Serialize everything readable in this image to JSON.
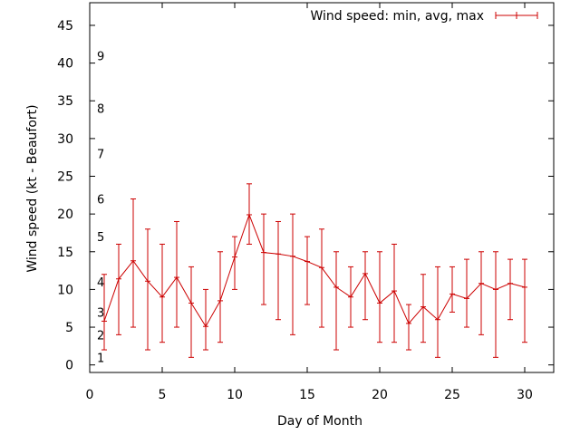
{
  "chart_data": {
    "type": "line",
    "xlabel": "Day of Month",
    "ylabel": "Wind speed (kt - Beaufort)",
    "xlim": [
      0,
      32
    ],
    "ylim": [
      -1,
      48
    ],
    "x_ticks": [
      0,
      5,
      10,
      15,
      20,
      25,
      30
    ],
    "y_ticks": [
      0,
      5,
      10,
      15,
      20,
      25,
      30,
      35,
      40,
      45
    ],
    "grid": false,
    "legend_position": "top-right",
    "series": [
      {
        "name": "Wind speed: min, avg, max",
        "color": "#cc0000",
        "x": [
          1,
          2,
          3,
          4,
          5,
          6,
          7,
          8,
          9,
          10,
          11,
          12,
          13,
          14,
          15,
          16,
          17,
          18,
          19,
          20,
          21,
          22,
          23,
          24,
          25,
          26,
          27,
          28,
          29,
          30
        ],
        "avg": [
          5.8,
          11.4,
          13.8,
          11.1,
          9.0,
          11.6,
          8.2,
          5.1,
          8.5,
          14.3,
          19.9,
          14.9,
          14.7,
          14.4,
          13.7,
          12.9,
          10.3,
          9.0,
          12.1,
          8.2,
          9.8,
          5.5,
          7.7,
          6.0,
          9.4,
          8.8,
          10.8,
          10.0,
          10.8,
          10.3
        ],
        "min": [
          2,
          4,
          5,
          2,
          3,
          5,
          1,
          2,
          3,
          10,
          16,
          8,
          6,
          4,
          8,
          5,
          2,
          5,
          6,
          3,
          3,
          2,
          3,
          1,
          7,
          5,
          4,
          1,
          6,
          3
        ],
        "max": [
          12,
          16,
          22,
          18,
          16,
          19,
          13,
          10,
          15,
          17,
          24,
          20,
          19,
          20,
          17,
          18,
          15,
          13,
          15,
          15,
          16,
          8,
          12,
          13,
          13,
          14,
          15,
          15,
          14,
          14
        ]
      }
    ],
    "beaufort_scale": [
      {
        "label": "1",
        "at": 1
      },
      {
        "label": "2",
        "at": 4
      },
      {
        "label": "3",
        "at": 7
      },
      {
        "label": "4",
        "at": 11
      },
      {
        "label": "5",
        "at": 17
      },
      {
        "label": "6",
        "at": 22
      },
      {
        "label": "7",
        "at": 28
      },
      {
        "label": "8",
        "at": 34
      },
      {
        "label": "9",
        "at": 41
      }
    ]
  }
}
